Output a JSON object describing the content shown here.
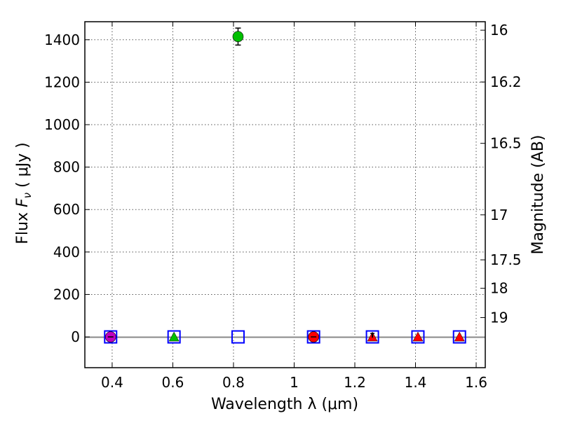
{
  "chart_data": {
    "type": "scatter",
    "xlabel": "Wavelength  λ (μm)",
    "ylabel": "Flux  F_ν  ( μJy )",
    "ylabel_parts": {
      "prefix": "Flux  ",
      "var": "F",
      "sub": "ν",
      "suffix": "  ( μJy )"
    },
    "y2label": "Magnitude (AB)",
    "xlim": [
      0.31,
      1.63
    ],
    "ylim": [
      -145,
      1485
    ],
    "grid": true,
    "x_ticks": [
      0.4,
      0.6,
      0.8,
      1.0,
      1.2,
      1.4,
      1.6
    ],
    "x_tick_labels": [
      "0.4",
      "0.6",
      "0.8",
      "1",
      "1.2",
      "1.4",
      "1.6"
    ],
    "y_ticks": [
      0,
      200,
      400,
      600,
      800,
      1000,
      1200,
      1400
    ],
    "y_tick_labels": [
      "0",
      "200",
      "400",
      "600",
      "800",
      "1000",
      "1200",
      "1400"
    ],
    "mag_ticks": [
      {
        "label": "16",
        "flux": 1445
      },
      {
        "label": "16.2",
        "flux": 1201
      },
      {
        "label": "16.5",
        "flux": 912
      },
      {
        "label": "17",
        "flux": 575
      },
      {
        "label": "17.5",
        "flux": 363
      },
      {
        "label": "18",
        "flux": 229
      },
      {
        "label": "19",
        "flux": 91
      }
    ],
    "reference_line": {
      "y": 0,
      "color": "#888888"
    },
    "series": [
      {
        "name": "model_boxes",
        "marker": "square",
        "color": "#0000ff",
        "filled": false,
        "points": [
          {
            "x": 0.395,
            "y": 0
          },
          {
            "x": 0.604,
            "y": 0
          },
          {
            "x": 0.815,
            "y": 0
          },
          {
            "x": 1.064,
            "y": 0
          },
          {
            "x": 1.258,
            "y": 0
          },
          {
            "x": 1.408,
            "y": 0
          },
          {
            "x": 1.545,
            "y": 0
          }
        ]
      },
      {
        "name": "photometry_circles",
        "marker": "circle",
        "points": [
          {
            "x": 0.395,
            "y": 0,
            "yerr": 0,
            "color": "#bf00bf"
          },
          {
            "x": 0.815,
            "y": 1415,
            "yerr": 40,
            "color": "#00bf00"
          },
          {
            "x": 1.064,
            "y": 0,
            "yerr": 0,
            "color": "#ff0000"
          }
        ]
      },
      {
        "name": "upper_limit_triangles",
        "marker": "triangle",
        "points": [
          {
            "x": 0.604,
            "y": 0,
            "color": "#00bf00"
          },
          {
            "x": 1.258,
            "y": 0,
            "color": "#ff0000"
          },
          {
            "x": 1.408,
            "y": 0,
            "color": "#ff0000"
          },
          {
            "x": 1.545,
            "y": 0,
            "color": "#ff0000"
          }
        ]
      }
    ],
    "colors": {
      "axis": "#000000",
      "grid": "#555555",
      "background": "#ffffff"
    }
  }
}
